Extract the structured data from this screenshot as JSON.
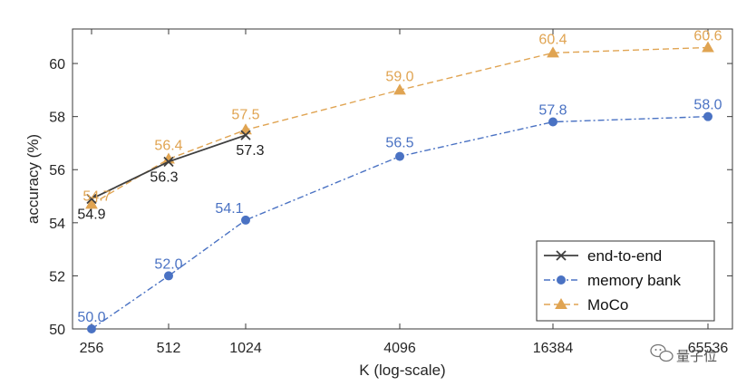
{
  "chart_data": {
    "type": "line",
    "x": [
      256,
      512,
      1024,
      4096,
      16384,
      65536
    ],
    "x_tick_labels": [
      "256",
      "512",
      "1024",
      "4096",
      "16384",
      "65536"
    ],
    "x_scale": "log",
    "xlabel": "K (log-scale)",
    "ylabel": "accuracy (%)",
    "ylim": [
      50,
      61.3
    ],
    "y_ticks": [
      50,
      52,
      54,
      56,
      58,
      60
    ],
    "grid": false,
    "legend_position": "bottom-right",
    "series": [
      {
        "name": "end-to-end",
        "x": [
          256,
          512,
          1024
        ],
        "values": [
          54.9,
          56.3,
          57.3
        ],
        "labels": [
          "54.9",
          "56.3",
          "57.3"
        ],
        "color": "#3f3f3f",
        "marker": "x",
        "linestyle": "solid"
      },
      {
        "name": "memory bank",
        "x": [
          256,
          512,
          1024,
          4096,
          16384,
          65536
        ],
        "values": [
          50.0,
          52.0,
          54.1,
          56.5,
          57.8,
          58.0
        ],
        "labels": [
          "50.0",
          "52.0",
          "54.1",
          "56.5",
          "57.8",
          "58.0"
        ],
        "color": "#4a72c3",
        "marker": "circle",
        "linestyle": "dashdot"
      },
      {
        "name": "MoCo",
        "x": [
          256,
          512,
          1024,
          4096,
          16384,
          65536
        ],
        "values": [
          54.7,
          56.4,
          57.5,
          59.0,
          60.4,
          60.6
        ],
        "labels": [
          "54.7",
          "56.4",
          "57.5",
          "59.0",
          "60.4",
          "60.6"
        ],
        "color": "#e0a452",
        "marker": "triangle",
        "linestyle": "dashed"
      }
    ]
  },
  "watermark": {
    "icon": "wechat-icon",
    "text": "量子位"
  }
}
